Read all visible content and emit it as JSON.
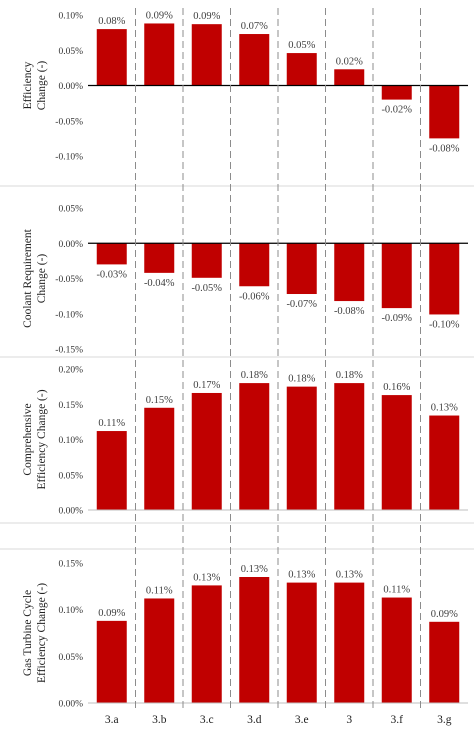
{
  "chart_data": [
    {
      "type": "bar",
      "ylabel": "Efficiency Change (-)",
      "categories": [
        "3.a",
        "3.b",
        "3.c",
        "3.d",
        "3.e",
        "3",
        "3.f",
        "3.g"
      ],
      "values": [
        0.0008,
        0.00088,
        0.00087,
        0.00073,
        0.00046,
        0.00023,
        -0.0002,
        -0.00075
      ],
      "data_labels": [
        "0.08%",
        "0.09%",
        "0.09%",
        "0.07%",
        "0.05%",
        "0.02%",
        "-0.02%",
        "-0.08%"
      ],
      "ylim": [
        -0.001,
        0.001
      ],
      "yticks": [
        0.001,
        0.0005,
        0.0,
        -0.0005,
        -0.001
      ],
      "ytick_labels": [
        "0.10%",
        "0.05%",
        "0.00%",
        "-0.05%",
        "-0.10%"
      ],
      "bar_color": "#c00000"
    },
    {
      "type": "bar",
      "ylabel": "Coolant Requirement Change (-)",
      "categories": [
        "3.a",
        "3.b",
        "3.c",
        "3.d",
        "3.e",
        "3",
        "3.f",
        "3.g"
      ],
      "values": [
        -0.0003,
        -0.00042,
        -0.00049,
        -0.00061,
        -0.00072,
        -0.00082,
        -0.00092,
        -0.00101
      ],
      "data_labels": [
        "-0.03%",
        "-0.04%",
        "-0.05%",
        "-0.06%",
        "-0.07%",
        "-0.08%",
        "-0.09%",
        "-0.10%"
      ],
      "ylim": [
        -0.0015,
        0.0005
      ],
      "yticks": [
        0.0005,
        0.0,
        -0.0005,
        -0.001,
        -0.0015
      ],
      "ytick_labels": [
        "0.05%",
        "0.00%",
        "-0.05%",
        "-0.10%",
        "-0.15%"
      ],
      "bar_color": "#c00000"
    },
    {
      "type": "bar",
      "ylabel": "Comprehensive Efficiency Change (-)",
      "categories": [
        "3.a",
        "3.b",
        "3.c",
        "3.d",
        "3.e",
        "3",
        "3.f",
        "3.g"
      ],
      "values": [
        0.00112,
        0.00145,
        0.00166,
        0.0018,
        0.00175,
        0.0018,
        0.00163,
        0.00134
      ],
      "data_labels": [
        "0.11%",
        "0.15%",
        "0.17%",
        "0.18%",
        "0.18%",
        "0.18%",
        "0.16%",
        "0.13%"
      ],
      "ylim": [
        0,
        0.002
      ],
      "yticks": [
        0.002,
        0.0015,
        0.001,
        0.0005,
        0.0
      ],
      "ytick_labels": [
        "0.20%",
        "0.15%",
        "0.10%",
        "0.05%",
        "0.00%"
      ],
      "bar_color": "#c00000"
    },
    {
      "type": "bar",
      "ylabel": "Gas Turbine Cycle Efficiency Change (-)",
      "categories": [
        "3.a",
        "3.b",
        "3.c",
        "3.d",
        "3.e",
        "3",
        "3.f",
        "3.g"
      ],
      "values": [
        0.00088,
        0.00112,
        0.00126,
        0.00135,
        0.00129,
        0.00129,
        0.00113,
        0.00087
      ],
      "data_labels": [
        "0.09%",
        "0.11%",
        "0.13%",
        "0.13%",
        "0.13%",
        "0.13%",
        "0.11%",
        "0.09%"
      ],
      "ylim": [
        0,
        0.0015
      ],
      "yticks": [
        0.0015,
        0.001,
        0.0005,
        0.0
      ],
      "ytick_labels": [
        "0.15%",
        "0.10%",
        "0.05%",
        "0.00%"
      ],
      "bar_color": "#c00000",
      "show_category_labels": true
    }
  ]
}
